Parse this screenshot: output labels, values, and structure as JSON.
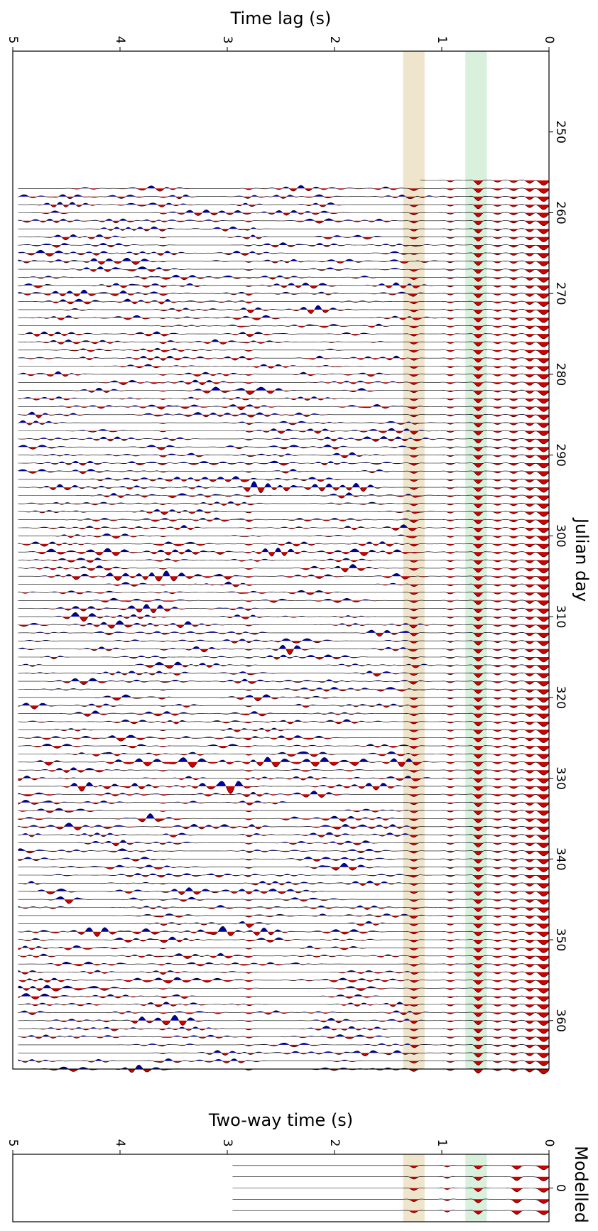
{
  "chart_data": [
    {
      "type": "line",
      "panel": "observed",
      "xlabel": "Julian day",
      "ylabel": "Time lag (s)",
      "xlim": [
        240,
        366
      ],
      "ylim": [
        0,
        5
      ],
      "x_ticks": [
        250,
        260,
        270,
        280,
        290,
        300,
        310,
        320,
        330,
        340,
        350,
        360
      ],
      "y_ticks": [
        0,
        1,
        2,
        3,
        4,
        5
      ],
      "trace_days_range": [
        256,
        366
      ],
      "trace_interval_days": 1,
      "first_trace_day": 256,
      "trace_onset_s": 4.95,
      "fill_colors": {
        "positive": "#cc0000",
        "negative": "#0000aa"
      },
      "highlight_bands": [
        {
          "from": 0.58,
          "to": 0.78,
          "color": "#d8f0dc"
        },
        {
          "from": 1.16,
          "to": 1.36,
          "color": "#efe5cc"
        }
      ],
      "arrivals": [
        {
          "t": 0.05,
          "amp": 1.0,
          "freq": 2.0
        },
        {
          "t": 0.18,
          "amp": 0.6,
          "freq": 5.0
        },
        {
          "t": 0.33,
          "amp": 0.45,
          "freq": 5.0
        },
        {
          "t": 0.48,
          "amp": 0.35,
          "freq": 5.0
        },
        {
          "t": 0.66,
          "amp": 0.85,
          "freq": 5.0
        },
        {
          "t": 0.92,
          "amp": 0.3,
          "freq": 6.0
        },
        {
          "t": 1.26,
          "amp": 0.45,
          "freq": 5.0
        },
        {
          "t": 2.8,
          "amp": 0.25,
          "freq": 6.0
        },
        {
          "t": 3.6,
          "amp": 0.2,
          "freq": 6.0
        }
      ],
      "strong_days": [
        270,
        294,
        302,
        305,
        328,
        331,
        336,
        349
      ]
    },
    {
      "type": "line",
      "panel": "modelled",
      "title": "Modelled",
      "ylabel": "Two-way time (s)",
      "xlim": [
        -0.6,
        0.6
      ],
      "ylim": [
        0,
        5
      ],
      "x_ticks": [
        0
      ],
      "y_ticks": [
        0,
        1,
        2,
        3,
        4,
        5
      ],
      "trace_count": 5,
      "trace_onset_s": 2.95,
      "highlight_bands": [
        {
          "from": 0.58,
          "to": 0.78,
          "color": "#d8f0dc"
        },
        {
          "from": 1.16,
          "to": 1.36,
          "color": "#efe5cc"
        }
      ],
      "arrivals": [
        {
          "t": 0.05,
          "amp": 1.0,
          "freq": 2.0
        },
        {
          "t": 0.3,
          "amp": 0.9,
          "freq": 4.0
        },
        {
          "t": 0.66,
          "amp": 0.85,
          "freq": 5.0
        },
        {
          "t": 0.95,
          "amp": 0.35,
          "freq": 7.0
        },
        {
          "t": 1.26,
          "amp": 0.55,
          "freq": 5.0
        }
      ]
    }
  ]
}
